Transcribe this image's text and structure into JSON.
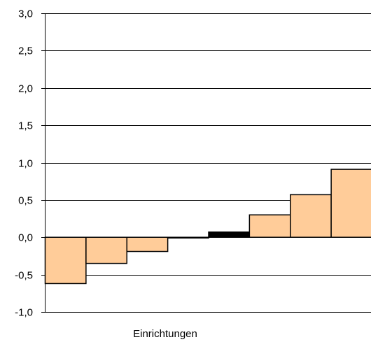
{
  "chart_data": {
    "type": "bar",
    "title": "",
    "xlabel": "Einrichtungen",
    "ylabel": "",
    "ylim": [
      -1.0,
      3.0
    ],
    "yticks": [
      3.0,
      2.5,
      2.0,
      1.5,
      1.0,
      0.5,
      0.0,
      -0.5,
      -1.0
    ],
    "ytick_labels": [
      "3,0",
      "2,5",
      "2,0",
      "1,5",
      "1,0",
      "0,5",
      "0,0",
      "-0,5",
      "-1,0"
    ],
    "grid": "horizontal",
    "bar_gap": "none",
    "values": [
      -0.62,
      -0.35,
      -0.19,
      -0.01,
      0.07,
      0.3,
      0.57,
      0.91
    ],
    "highlight_index": 4,
    "colors": {
      "bar": "#ffcc99",
      "highlight": "#000000",
      "bar_border": "#000000",
      "grid": "#000000",
      "axis": "#000000"
    }
  }
}
